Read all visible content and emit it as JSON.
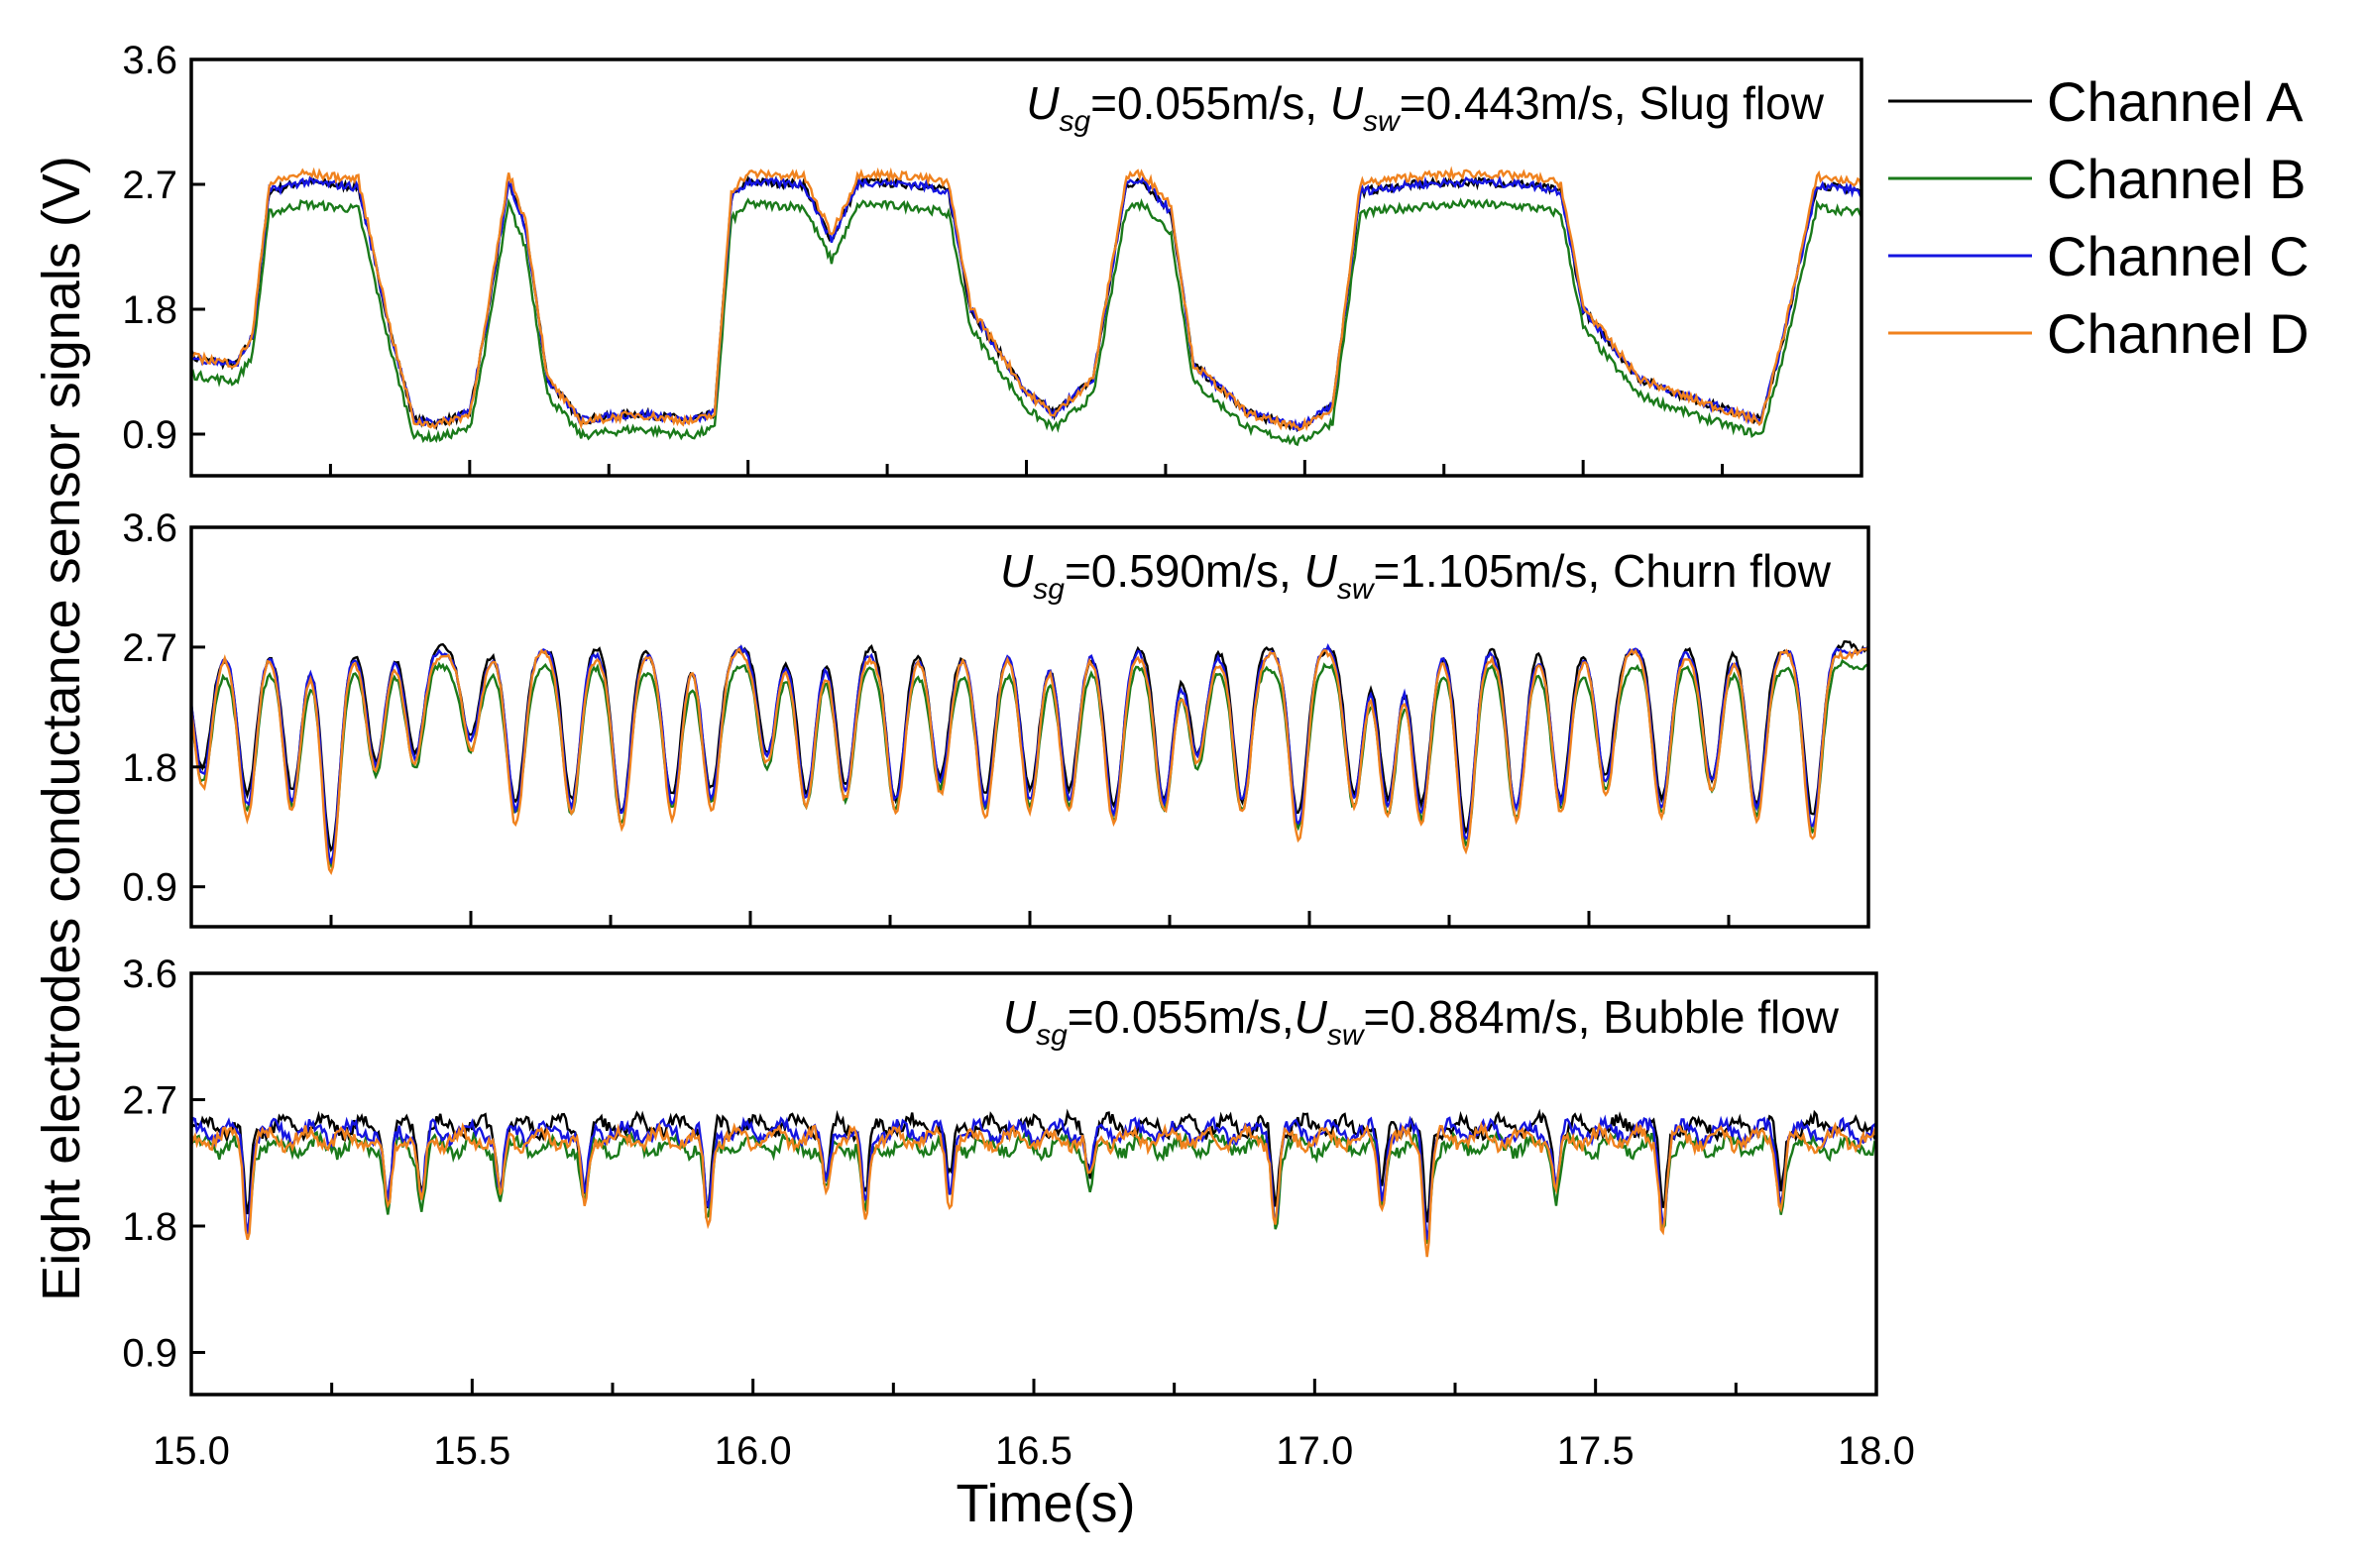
{
  "chart_data": [
    {
      "type": "line",
      "panel": "top",
      "annotation": {
        "sym1": "U",
        "sub1": "sg",
        "mid": "=0.055m/s, ",
        "sym2": "U",
        "sub2": "sw",
        "tail": "=0.443m/s, Slug flow"
      },
      "ylim": [
        0.6,
        3.6
      ],
      "yticks": [
        "0.9",
        "1.8",
        "2.7",
        "3.6"
      ],
      "flow": "Slug flow",
      "profile": {
        "t": [
          15.0,
          15.08,
          15.11,
          15.14,
          15.2,
          15.3,
          15.36,
          15.4,
          15.44,
          15.5,
          15.53,
          15.57,
          15.6,
          15.64,
          15.7,
          15.8,
          15.9,
          15.94,
          15.97,
          16.0,
          16.1,
          16.15,
          16.2,
          16.3,
          16.36,
          16.4,
          16.5,
          16.55,
          16.62,
          16.68,
          16.71,
          16.76,
          16.8,
          16.9,
          16.99,
          17.05,
          17.1,
          17.2,
          17.3,
          17.4,
          17.46,
          17.5,
          17.6,
          17.7,
          17.78,
          17.82,
          17.86,
          17.92,
          18.0
        ],
        "v": [
          1.45,
          1.4,
          1.6,
          2.65,
          2.72,
          2.68,
          1.6,
          1.0,
          0.98,
          1.05,
          1.7,
          2.72,
          2.4,
          1.3,
          1.0,
          1.05,
          1.0,
          1.05,
          2.6,
          2.72,
          2.7,
          2.3,
          2.72,
          2.7,
          2.65,
          1.8,
          1.2,
          1.05,
          1.3,
          2.7,
          2.72,
          2.5,
          1.4,
          1.05,
          0.95,
          1.1,
          2.65,
          2.7,
          2.72,
          2.7,
          2.65,
          1.8,
          1.3,
          1.15,
          1.05,
          1.0,
          1.6,
          2.7,
          2.65
        ]
      },
      "series": [
        {
          "name": "Channel A",
          "color": "#000000"
        },
        {
          "name": "Channel B",
          "color": "#1a7a1a"
        },
        {
          "name": "Channel C",
          "color": "#1515e0"
        },
        {
          "name": "Channel D",
          "color": "#f0821e"
        }
      ]
    },
    {
      "type": "line",
      "panel": "middle",
      "annotation": {
        "sym1": "U",
        "sub1": "sg",
        "mid": "=0.590m/s, ",
        "sym2": "U",
        "sub2": "sw",
        "tail": "=1.105m/s, Churn flow"
      },
      "ylim": [
        0.6,
        3.6
      ],
      "yticks": [
        "0.9",
        "1.8",
        "2.7",
        "3.6"
      ],
      "flow": "Churn flow",
      "base": 2.68,
      "dips": [
        {
          "t": 15.02,
          "d": 1.75
        },
        {
          "t": 15.1,
          "d": 1.55
        },
        {
          "t": 15.18,
          "d": 1.6
        },
        {
          "t": 15.25,
          "d": 1.15
        },
        {
          "t": 15.33,
          "d": 1.85
        },
        {
          "t": 15.4,
          "d": 1.9
        },
        {
          "t": 15.5,
          "d": 2.0
        },
        {
          "t": 15.58,
          "d": 1.5
        },
        {
          "t": 15.68,
          "d": 1.55
        },
        {
          "t": 15.77,
          "d": 1.45
        },
        {
          "t": 15.86,
          "d": 1.55
        },
        {
          "t": 15.93,
          "d": 1.6
        },
        {
          "t": 16.03,
          "d": 1.9
        },
        {
          "t": 16.1,
          "d": 1.6
        },
        {
          "t": 16.17,
          "d": 1.65
        },
        {
          "t": 16.26,
          "d": 1.55
        },
        {
          "t": 16.34,
          "d": 1.7
        },
        {
          "t": 16.42,
          "d": 1.55
        },
        {
          "t": 16.5,
          "d": 1.6
        },
        {
          "t": 16.57,
          "d": 1.6
        },
        {
          "t": 16.65,
          "d": 1.5
        },
        {
          "t": 16.74,
          "d": 1.55
        },
        {
          "t": 16.8,
          "d": 1.9
        },
        {
          "t": 16.88,
          "d": 1.55
        },
        {
          "t": 16.98,
          "d": 1.4
        },
        {
          "t": 17.08,
          "d": 1.6
        },
        {
          "t": 17.14,
          "d": 1.55
        },
        {
          "t": 17.2,
          "d": 1.5
        },
        {
          "t": 17.28,
          "d": 1.3
        },
        {
          "t": 17.37,
          "d": 1.5
        },
        {
          "t": 17.45,
          "d": 1.55
        },
        {
          "t": 17.53,
          "d": 1.7
        },
        {
          "t": 17.63,
          "d": 1.55
        },
        {
          "t": 17.72,
          "d": 1.7
        },
        {
          "t": 17.8,
          "d": 1.5
        },
        {
          "t": 17.9,
          "d": 1.4
        }
      ],
      "series": [
        {
          "name": "Channel A",
          "color": "#000000"
        },
        {
          "name": "Channel B",
          "color": "#1a7a1a"
        },
        {
          "name": "Channel C",
          "color": "#1515e0"
        },
        {
          "name": "Channel D",
          "color": "#f0821e"
        }
      ]
    },
    {
      "type": "line",
      "panel": "bottom",
      "annotation": {
        "sym1": "U",
        "sub1": "sg",
        "mid": "=0.055m/s,",
        "sym2": "U",
        "sub2": "sw",
        "tail": "=0.884m/s,  Bubble flow"
      },
      "ylim": [
        0.6,
        3.6
      ],
      "yticks": [
        "0.9",
        "1.8",
        "2.7",
        "3.6"
      ],
      "flow": "Bubble flow",
      "base": 2.45,
      "dips": [
        {
          "t": 15.1,
          "d": 1.8
        },
        {
          "t": 15.35,
          "d": 1.95
        },
        {
          "t": 15.41,
          "d": 2.0
        },
        {
          "t": 15.55,
          "d": 2.05
        },
        {
          "t": 15.7,
          "d": 2.0
        },
        {
          "t": 15.92,
          "d": 1.85
        },
        {
          "t": 16.13,
          "d": 2.1
        },
        {
          "t": 16.2,
          "d": 1.95
        },
        {
          "t": 16.35,
          "d": 2.05
        },
        {
          "t": 16.6,
          "d": 2.15
        },
        {
          "t": 16.93,
          "d": 1.9
        },
        {
          "t": 17.12,
          "d": 2.0
        },
        {
          "t": 17.2,
          "d": 1.75
        },
        {
          "t": 17.43,
          "d": 2.1
        },
        {
          "t": 17.62,
          "d": 1.85
        },
        {
          "t": 17.83,
          "d": 2.0
        }
      ],
      "series": [
        {
          "name": "Channel A",
          "color": "#000000"
        },
        {
          "name": "Channel B",
          "color": "#1a7a1a"
        },
        {
          "name": "Channel C",
          "color": "#1515e0"
        },
        {
          "name": "Channel D",
          "color": "#f0821e"
        }
      ]
    }
  ],
  "xaxis": {
    "title": "Time(s)",
    "range": [
      15.0,
      18.0
    ],
    "ticks": [
      "15.0",
      "15.5",
      "16.0",
      "16.5",
      "17.0",
      "17.5",
      "18.0"
    ]
  },
  "yaxis": {
    "title": "Eight electrodes conductance sensor  signals (V)"
  },
  "legend": {
    "items": [
      {
        "label": "Channel A",
        "color": "#000000"
      },
      {
        "label": "Channel B",
        "color": "#1a7a1a"
      },
      {
        "label": "Channel C",
        "color": "#1515e0"
      },
      {
        "label": "Channel D",
        "color": "#f0821e"
      }
    ]
  }
}
